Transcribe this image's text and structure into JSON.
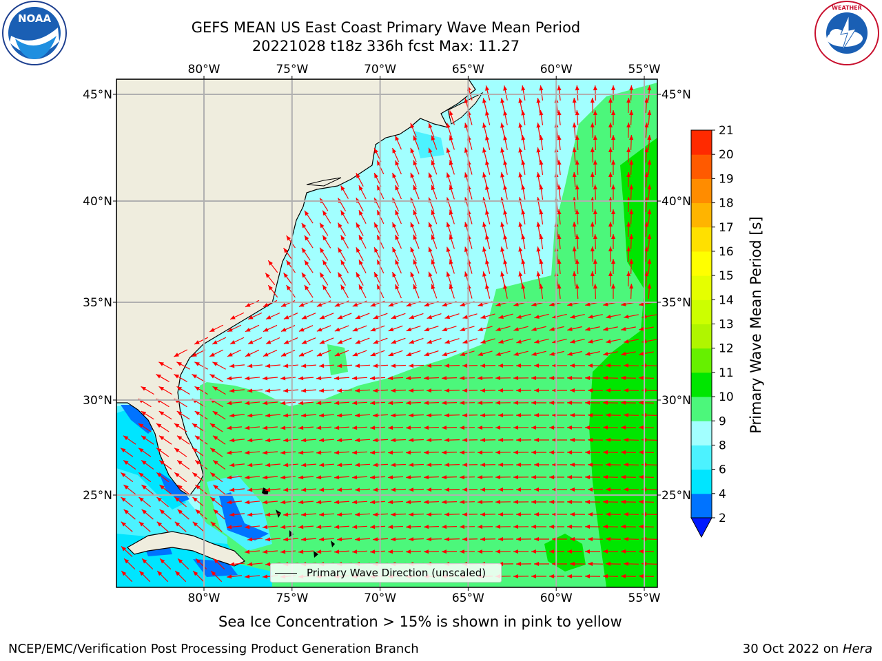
{
  "title_line1": "GEFS MEAN US East Coast Primary Wave Mean Period",
  "title_line2": "20221028 t18z 336h fcst   Max: 11.27",
  "map": {
    "lon_ticks": [
      "80°W",
      "75°W",
      "70°W",
      "65°W",
      "60°W",
      "55°W"
    ],
    "lat_ticks": [
      "45°N",
      "40°N",
      "35°N",
      "30°N",
      "25°N"
    ],
    "legend_label": "Primary Wave Direction (unscaled)",
    "vector_color": "#ff0000",
    "land_color": "#efedde"
  },
  "colorbar": {
    "label": "Primary Wave Mean Period [s]",
    "ticks": [
      "2",
      "4",
      "6",
      "8",
      "9",
      "10",
      "11",
      "12",
      "13",
      "14",
      "15",
      "16",
      "17",
      "18",
      "19",
      "20",
      "21"
    ],
    "colors": [
      "#0073ff",
      "#00e5ff",
      "#4cf2ff",
      "#a2ffff",
      "#4cf77b",
      "#00e600",
      "#66f000",
      "#b0f500",
      "#ccff00",
      "#e5ff00",
      "#ffff00",
      "#ffe000",
      "#ffb400",
      "#ff8c00",
      "#ff5a00",
      "#ff2a00"
    ],
    "under_color": "#0019ff"
  },
  "caption": "Sea Ice Concentration > 15% is shown in pink to yellow",
  "footer_left": "NCEP/EMC/Verification Post Processing Product Generation Branch",
  "footer_right_date": "30 Oct 2022 on",
  "footer_right_host": "Hera",
  "logos": {
    "left": "NOAA",
    "right": "NATIONAL WEATHER SERVICE"
  }
}
